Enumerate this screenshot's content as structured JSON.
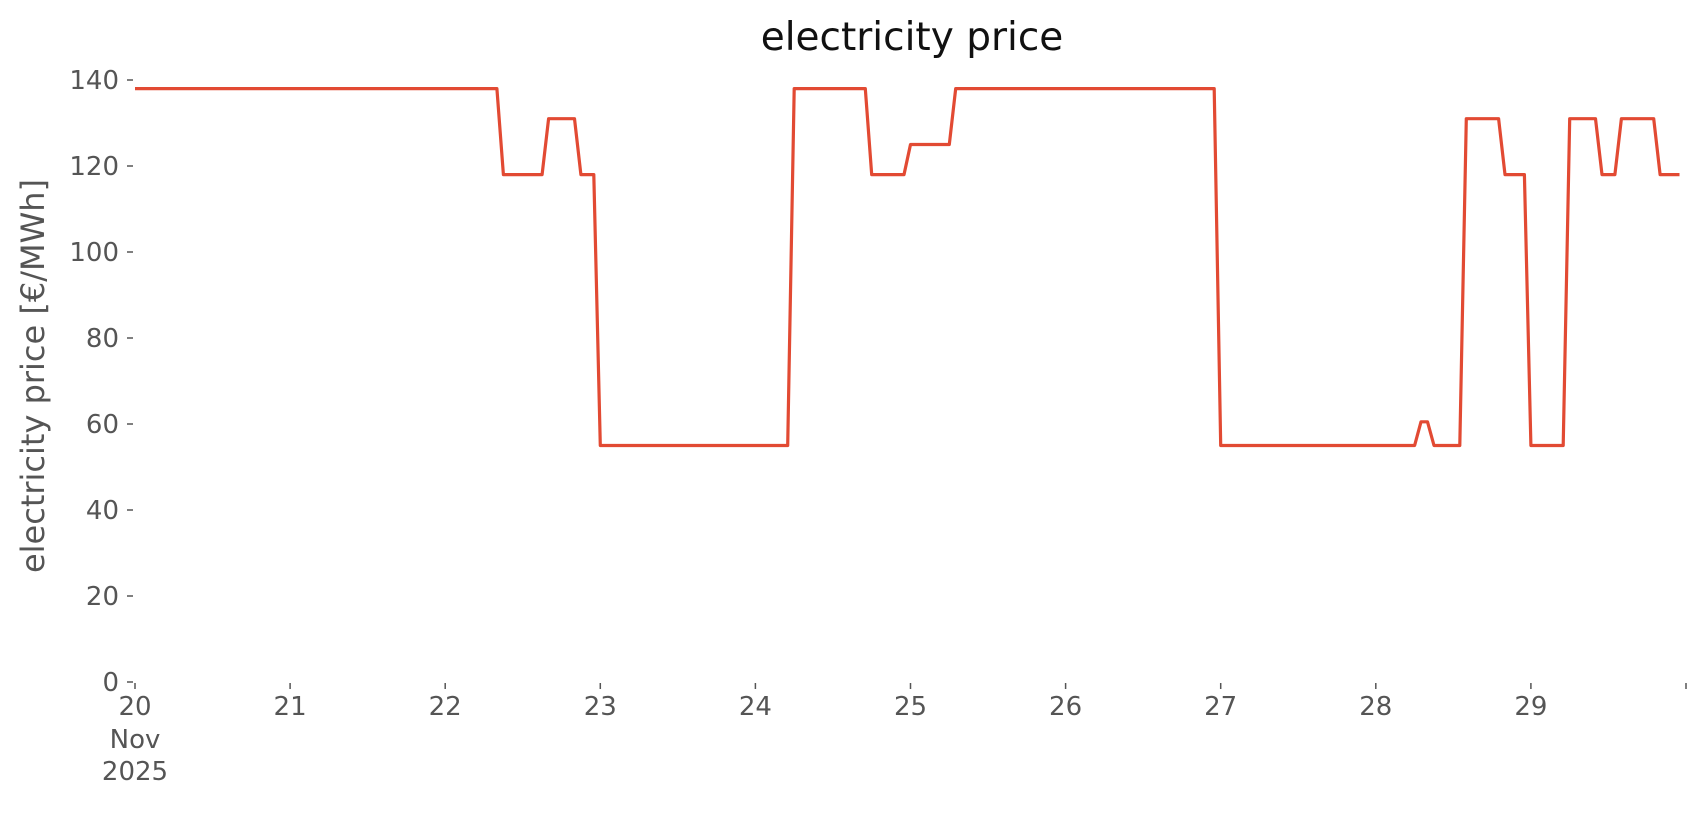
{
  "chart_data": {
    "type": "line",
    "title": "electricity price",
    "xlabel": "",
    "ylabel": "electricity price [€/MWh]",
    "ylim": [
      0,
      140
    ],
    "yticks": [
      0,
      20,
      40,
      60,
      80,
      100,
      120,
      140
    ],
    "xlim": [
      "2025-11-20T00:00",
      "2025-11-29T23:00"
    ],
    "x_ticks": [
      {
        "date": "2025-11-20",
        "label": "20",
        "sublabels": [
          "Nov",
          "2025"
        ]
      },
      {
        "date": "2025-11-21",
        "label": "21"
      },
      {
        "date": "2025-11-22",
        "label": "22"
      },
      {
        "date": "2025-11-23",
        "label": "23"
      },
      {
        "date": "2025-11-24",
        "label": "24"
      },
      {
        "date": "2025-11-25",
        "label": "25"
      },
      {
        "date": "2025-11-26",
        "label": "26"
      },
      {
        "date": "2025-11-27",
        "label": "27"
      },
      {
        "date": "2025-11-28",
        "label": "28"
      },
      {
        "date": "2025-11-29",
        "label": "29"
      },
      {
        "date": "2025-11-30",
        "label": ""
      }
    ],
    "grid": false,
    "color": "#e24a33",
    "series": [
      {
        "points": [
          {
            "x": "2025-11-20T00:00",
            "y": 138
          },
          {
            "x": "2025-11-22T08:00",
            "y": 138
          },
          {
            "x": "2025-11-22T09:00",
            "y": 118
          },
          {
            "x": "2025-11-22T15:00",
            "y": 118
          },
          {
            "x": "2025-11-22T16:00",
            "y": 131
          },
          {
            "x": "2025-11-22T20:00",
            "y": 131
          },
          {
            "x": "2025-11-22T21:00",
            "y": 118
          },
          {
            "x": "2025-11-22T23:00",
            "y": 118
          },
          {
            "x": "2025-11-23T00:00",
            "y": 55
          },
          {
            "x": "2025-11-24T05:00",
            "y": 55
          },
          {
            "x": "2025-11-24T06:00",
            "y": 138
          },
          {
            "x": "2025-11-24T17:00",
            "y": 138
          },
          {
            "x": "2025-11-24T18:00",
            "y": 118
          },
          {
            "x": "2025-11-24T23:00",
            "y": 118
          },
          {
            "x": "2025-11-25T00:00",
            "y": 125
          },
          {
            "x": "2025-11-25T06:00",
            "y": 125
          },
          {
            "x": "2025-11-25T07:00",
            "y": 138
          },
          {
            "x": "2025-11-26T23:00",
            "y": 138
          },
          {
            "x": "2025-11-27T00:00",
            "y": 55
          },
          {
            "x": "2025-11-28T06:00",
            "y": 55
          },
          {
            "x": "2025-11-28T07:00",
            "y": 60.5
          },
          {
            "x": "2025-11-28T08:00",
            "y": 60.5
          },
          {
            "x": "2025-11-28T09:00",
            "y": 55
          },
          {
            "x": "2025-11-28T13:00",
            "y": 55
          },
          {
            "x": "2025-11-28T14:00",
            "y": 131
          },
          {
            "x": "2025-11-28T19:00",
            "y": 131
          },
          {
            "x": "2025-11-28T20:00",
            "y": 118
          },
          {
            "x": "2025-11-28T23:00",
            "y": 118
          },
          {
            "x": "2025-11-29T00:00",
            "y": 55
          },
          {
            "x": "2025-11-29T05:00",
            "y": 55
          },
          {
            "x": "2025-11-29T06:00",
            "y": 131
          },
          {
            "x": "2025-11-29T10:00",
            "y": 131
          },
          {
            "x": "2025-11-29T11:00",
            "y": 118
          },
          {
            "x": "2025-11-29T13:00",
            "y": 118
          },
          {
            "x": "2025-11-29T14:00",
            "y": 131
          },
          {
            "x": "2025-11-29T19:00",
            "y": 131
          },
          {
            "x": "2025-11-29T20:00",
            "y": 118
          },
          {
            "x": "2025-11-29T23:00",
            "y": 118
          }
        ]
      }
    ]
  }
}
